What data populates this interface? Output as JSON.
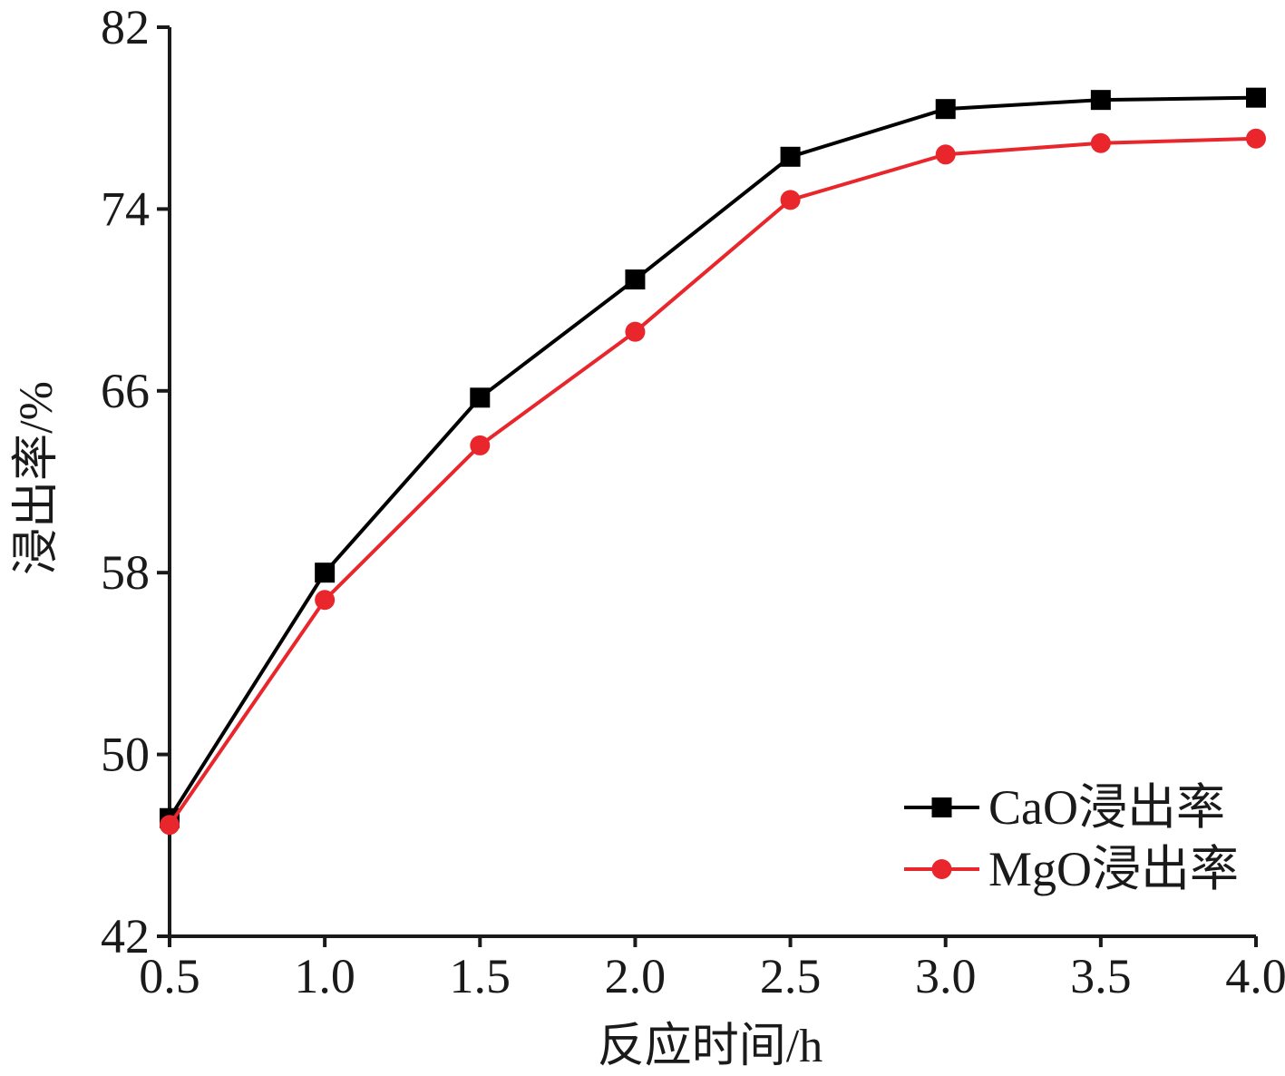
{
  "colors": {
    "cao": "#000000",
    "mgo": "#e8262b",
    "axis": "#1a1a1a"
  },
  "chart_data": {
    "type": "line",
    "title": "",
    "xlabel": "反应时间/h",
    "ylabel": "浸出率/%",
    "x": [
      0.5,
      1.0,
      1.5,
      2.0,
      2.5,
      3.0,
      3.5,
      4.0
    ],
    "x_tick_labels": [
      "0.5",
      "1.0",
      "1.5",
      "2.0",
      "2.5",
      "3.0",
      "3.5",
      "4.0"
    ],
    "y_ticks": [
      42,
      50,
      58,
      66,
      74,
      82
    ],
    "y_tick_labels": [
      "42",
      "50",
      "58",
      "66",
      "74",
      "82"
    ],
    "xlim": [
      0.5,
      4.0
    ],
    "ylim": [
      42,
      82
    ],
    "grid": false,
    "legend_position": "bottom-right",
    "series": [
      {
        "name": "CaO浸出率",
        "marker": "square",
        "color": "#000000",
        "values": [
          47.2,
          58.0,
          65.7,
          70.9,
          76.3,
          78.4,
          78.8,
          78.9
        ]
      },
      {
        "name": "MgO浸出率",
        "marker": "circle",
        "color": "#e8262b",
        "values": [
          46.9,
          56.8,
          63.6,
          68.6,
          74.4,
          76.4,
          76.9,
          77.1
        ]
      }
    ]
  }
}
